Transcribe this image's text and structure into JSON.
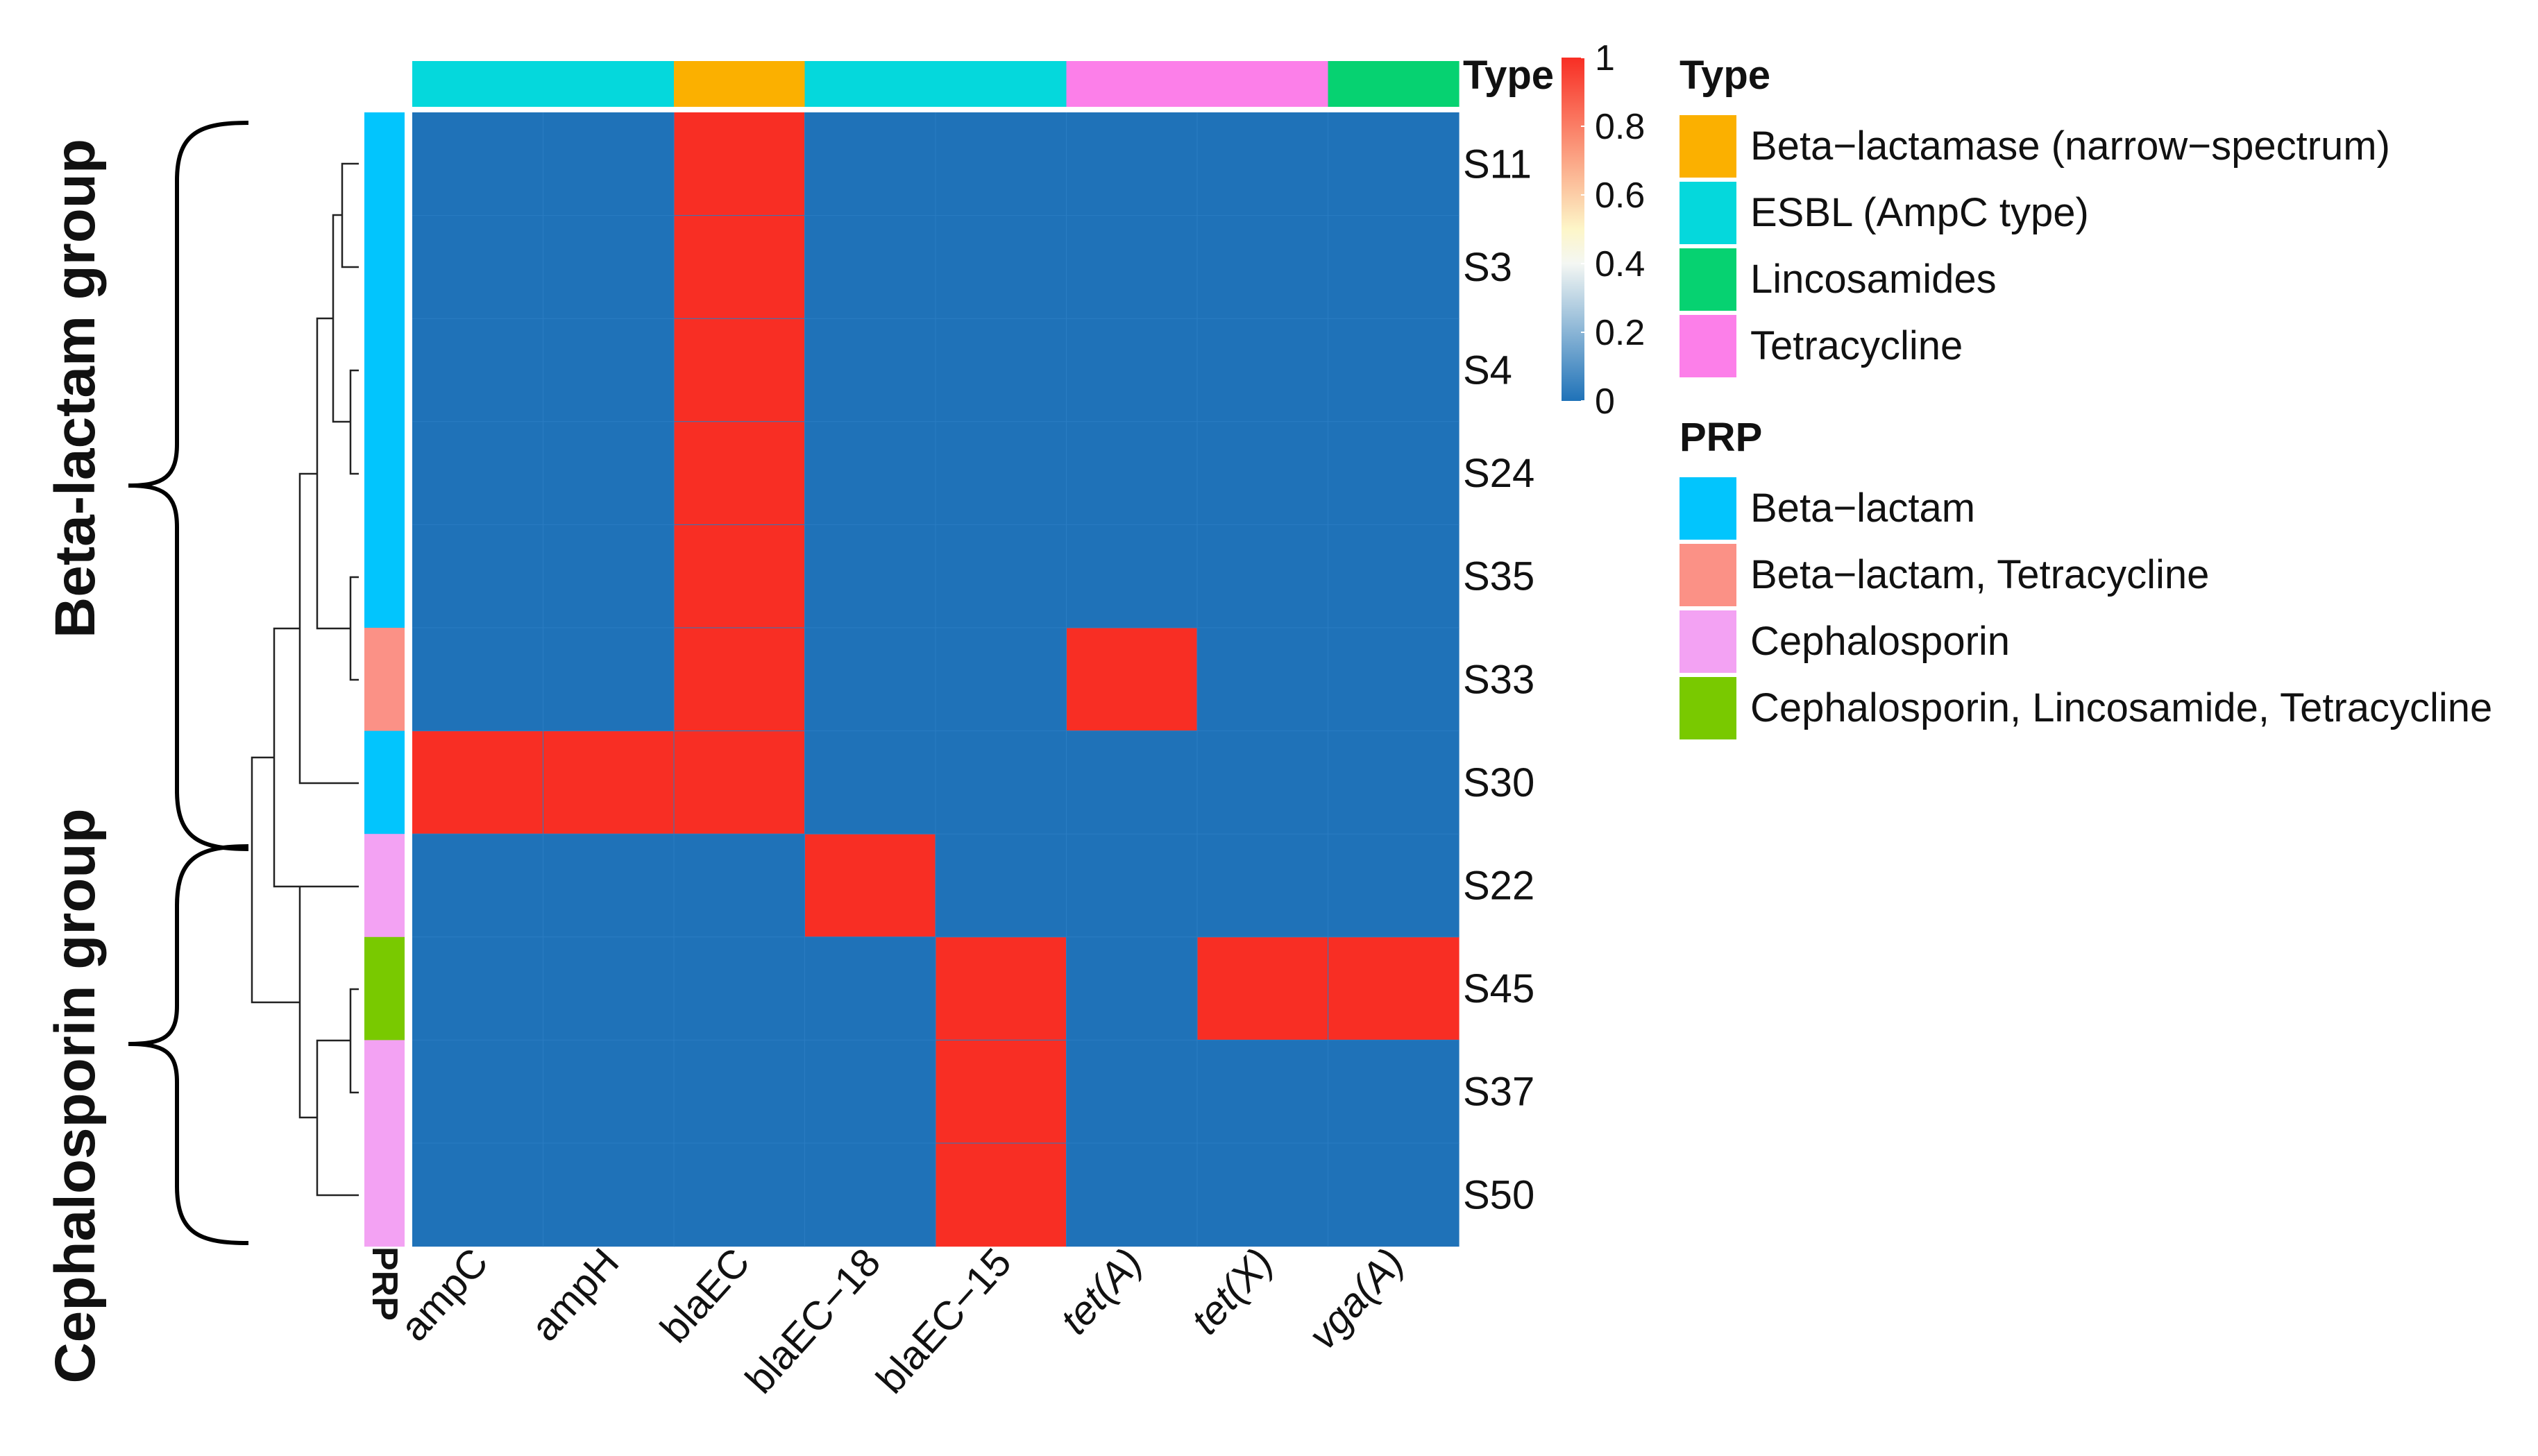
{
  "chart_data": {
    "type": "heatmap",
    "value_range": [
      0,
      1
    ],
    "colorscale": {
      "low": "#1f72b8",
      "mid": "#f7f5f0",
      "high": "#f82e24"
    },
    "colorbar_ticks": [
      "1",
      "0.8",
      "0.6",
      "0.4",
      "0.2",
      "0"
    ],
    "colorbar_tick_values": [
      1,
      0.8,
      0.6,
      0.4,
      0.2,
      0
    ],
    "columns": [
      "ampC",
      "ampH",
      "blaEC",
      "blaEC−18",
      "blaEC−15",
      "tet(A)",
      "tet(X)",
      "vga(A)"
    ],
    "column_italic": [
      false,
      false,
      false,
      false,
      false,
      true,
      true,
      true
    ],
    "rows": [
      "S11",
      "S3",
      "S4",
      "S24",
      "S35",
      "S33",
      "S30",
      "S22",
      "S45",
      "S37",
      "S50"
    ],
    "values": [
      [
        0,
        0,
        1,
        0,
        0,
        0,
        0,
        0
      ],
      [
        0,
        0,
        1,
        0,
        0,
        0,
        0,
        0
      ],
      [
        0,
        0,
        1,
        0,
        0,
        0,
        0,
        0
      ],
      [
        0,
        0,
        1,
        0,
        0,
        0,
        0,
        0
      ],
      [
        0,
        0,
        1,
        0,
        0,
        0,
        0,
        0
      ],
      [
        0,
        0,
        1,
        0,
        0,
        1,
        0,
        0
      ],
      [
        1,
        1,
        1,
        0,
        0,
        0,
        0,
        0
      ],
      [
        0,
        0,
        0,
        1,
        0,
        0,
        0,
        0
      ],
      [
        0,
        0,
        0,
        0,
        1,
        0,
        1,
        1
      ],
      [
        0,
        0,
        0,
        0,
        1,
        0,
        0,
        0
      ],
      [
        0,
        0,
        0,
        0,
        1,
        0,
        0,
        0
      ]
    ],
    "column_annotation": {
      "title": "Type",
      "values": [
        "ESBL (AmpC type)",
        "ESBL (AmpC type)",
        "Beta−lactamase (narrow−spectrum)",
        "ESBL (AmpC type)",
        "ESBL (AmpC type)",
        "Tetracycline",
        "Tetracycline",
        "Lincosamides"
      ]
    },
    "row_annotation": {
      "title": "PRP",
      "values": [
        "Beta−lactam",
        "Beta−lactam",
        "Beta−lactam",
        "Beta−lactam",
        "Beta−lactam",
        "Beta−lactam, Tetracycline",
        "Beta−lactam",
        "Cephalosporin",
        "Cephalosporin, Lincosamide, Tetracycline",
        "Cephalosporin",
        "Cephalosporin"
      ]
    },
    "legend_type": {
      "title": "Type",
      "items": [
        {
          "label": "Beta−lactamase (narrow−spectrum)",
          "color": "#fbb000"
        },
        {
          "label": "ESBL (AmpC type)",
          "color": "#05d8dc"
        },
        {
          "label": "Lincosamides",
          "color": "#06d271"
        },
        {
          "label": "Tetracycline",
          "color": "#fc7fe9"
        }
      ]
    },
    "legend_prp": {
      "title": "PRP",
      "items": [
        {
          "label": "Beta−lactam",
          "color": "#02c5fd"
        },
        {
          "label": "Beta−lactam, Tetracycline",
          "color": "#fb9186"
        },
        {
          "label": "Cephalosporin",
          "color": "#f3a2f3"
        },
        {
          "label": "Cephalosporin, Lincosamide, Tetracycline",
          "color": "#79c900"
        }
      ]
    },
    "groups": [
      "Beta-lactam group",
      "Cephalosporin group"
    ],
    "dendrogram": "hierarchical clustering of samples (rows)"
  }
}
